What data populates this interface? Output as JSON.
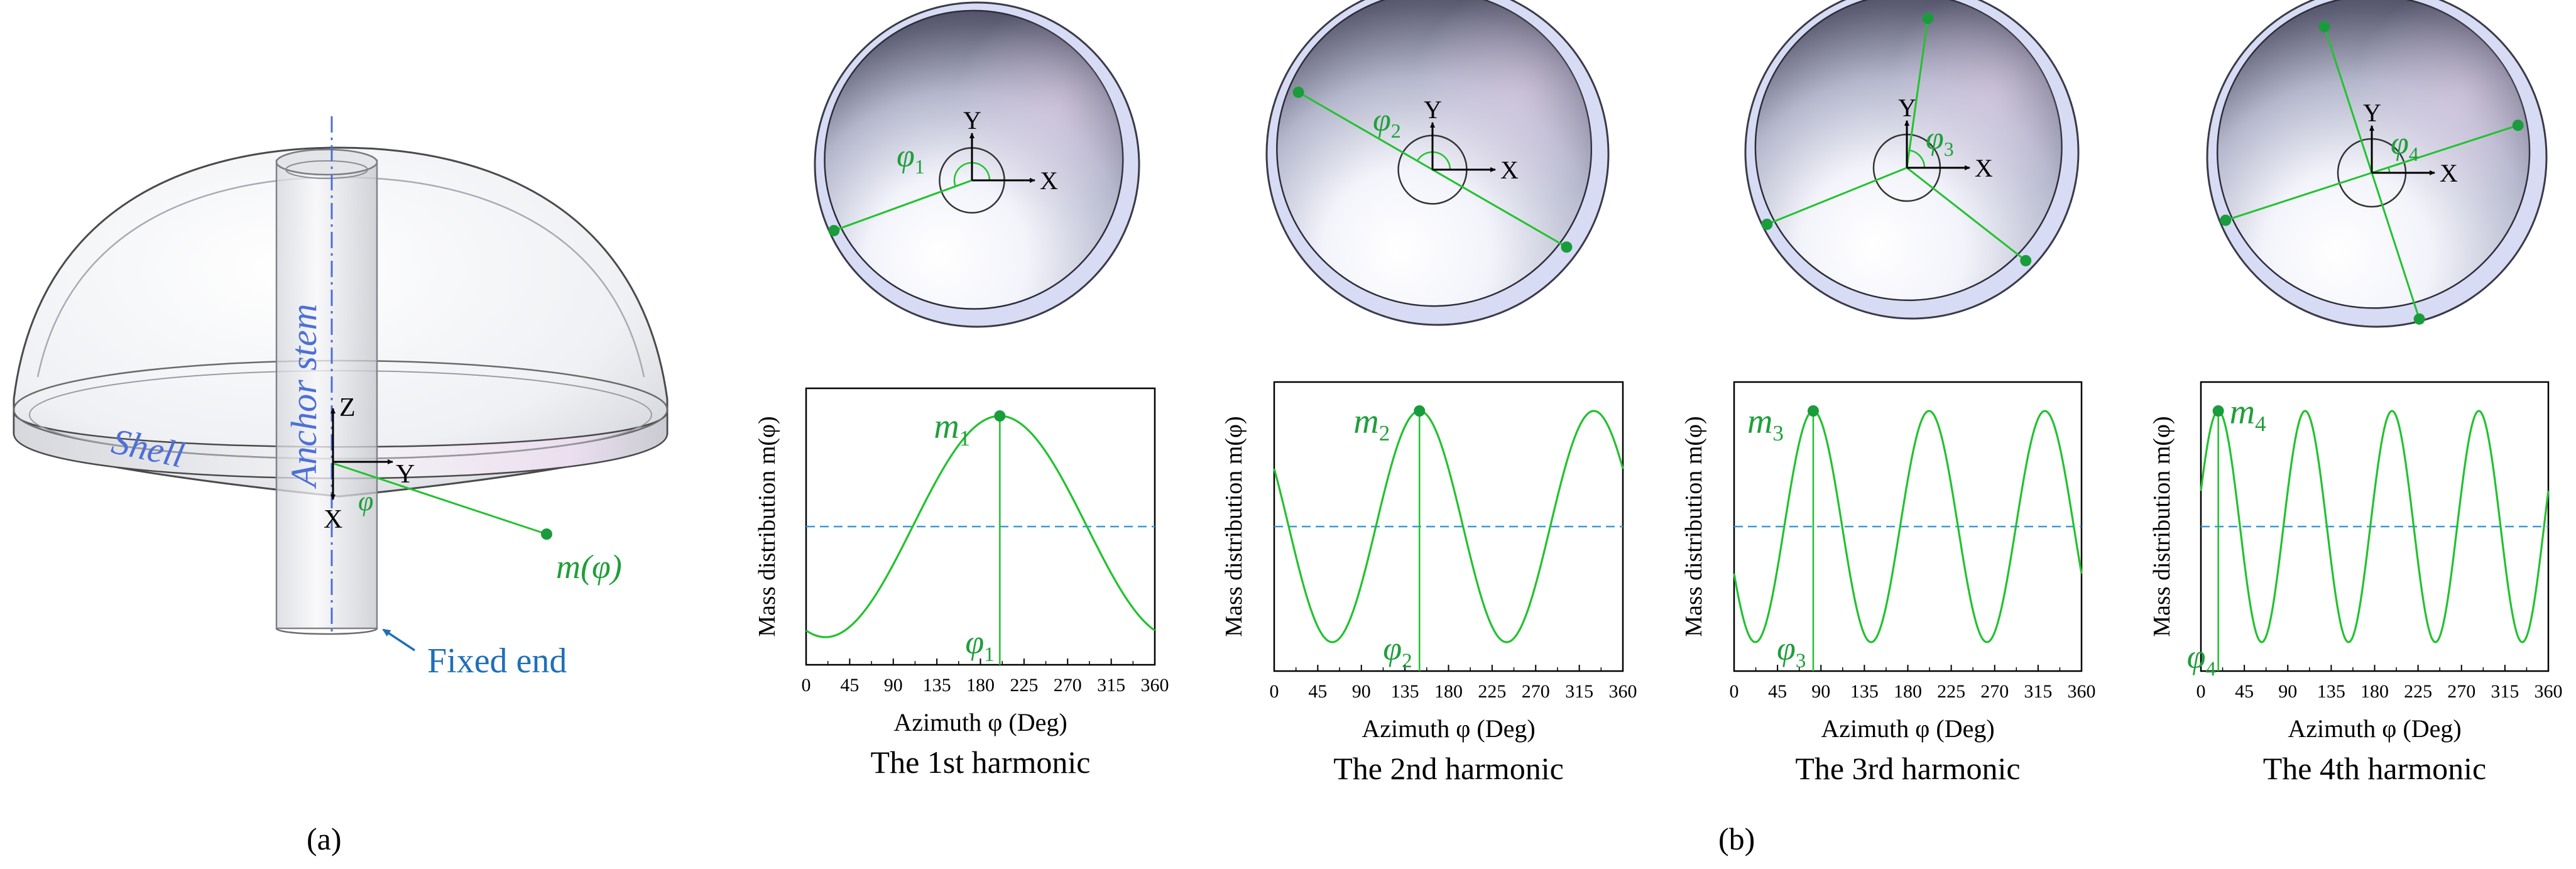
{
  "panel_a": {
    "caption": "(a)",
    "shell_label": "Shell",
    "stem_label": "Anchor stem",
    "fixed_end_label": "Fixed end",
    "axis_z": "Z",
    "axis_y": "Y",
    "axis_x": "X",
    "phi": "φ",
    "mass_label": "m(φ)"
  },
  "panel_b": {
    "caption": "(b)",
    "axis_x": "X",
    "axis_y": "Y",
    "xlabel": "Azimuth φ (Deg)",
    "ylabel": "Mass distribution m(φ)",
    "xticks": [
      "0",
      "45",
      "90",
      "135",
      "180",
      "225",
      "270",
      "315",
      "360"
    ],
    "xticks_first": [
      "0",
      "45",
      "90",
      "135",
      "180",
      "225",
      "270",
      "315",
      "360"
    ]
  },
  "colors": {
    "green": "#22c22e",
    "dark_green": "#1a9c3c",
    "label_green": "#1f9f3a",
    "blue": "#4d6fd6",
    "dash_blue": "#3a9ad9"
  },
  "chart_data": [
    {
      "type": "line",
      "title": "The 1st harmonic",
      "harmonic": 1,
      "peak_label": "m",
      "peak_sub": "1",
      "phi_label": "φ",
      "phi_sub": "1",
      "peak_azimuth": 200,
      "x": [
        0,
        360
      ],
      "xlim": [
        0,
        360
      ],
      "ylim": [
        -1.25,
        1.25
      ],
      "baseline": 0,
      "xlabel": "Azimuth φ (Deg)",
      "ylabel": "Mass distribution m(φ)",
      "xticks": [
        0,
        45,
        90,
        135,
        180,
        225,
        270,
        315,
        360
      ]
    },
    {
      "type": "line",
      "title": "The 2nd harmonic",
      "harmonic": 2,
      "peak_label": "m",
      "peak_sub": "2",
      "phi_label": "φ",
      "phi_sub": "2",
      "peak_azimuth": 150,
      "x": [
        0,
        360
      ],
      "xlim": [
        0,
        360
      ],
      "ylim": [
        -1.25,
        1.25
      ],
      "baseline": 0,
      "xlabel": "Azimuth φ (Deg)",
      "ylabel": "Mass distribution m(φ)",
      "xticks": [
        0,
        45,
        90,
        135,
        180,
        225,
        270,
        315,
        360
      ]
    },
    {
      "type": "line",
      "title": "The 3rd harmonic",
      "harmonic": 3,
      "peak_label": "m",
      "peak_sub": "3",
      "phi_label": "φ",
      "phi_sub": "3",
      "peak_azimuth": 82,
      "x": [
        0,
        360
      ],
      "xlim": [
        0,
        360
      ],
      "ylim": [
        -1.25,
        1.25
      ],
      "baseline": 0,
      "xlabel": "Azimuth φ (Deg)",
      "ylabel": "Mass distribution m(φ)",
      "xticks": [
        0,
        45,
        90,
        135,
        180,
        225,
        270,
        315,
        360
      ]
    },
    {
      "type": "line",
      "title": "The 4th harmonic",
      "harmonic": 4,
      "peak_label": "m",
      "peak_sub": "4",
      "phi_label": "φ",
      "phi_sub": "4",
      "peak_azimuth": 18,
      "x": [
        0,
        360
      ],
      "xlim": [
        0,
        360
      ],
      "ylim": [
        -1.25,
        1.25
      ],
      "baseline": 0,
      "xlabel": "Azimuth φ (Deg)",
      "ylabel": "Mass distribution m(φ)",
      "xticks": [
        0,
        45,
        90,
        135,
        180,
        225,
        270,
        315,
        360
      ]
    }
  ]
}
